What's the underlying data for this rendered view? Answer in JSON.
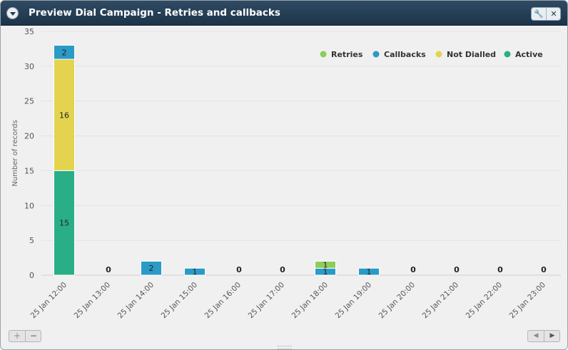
{
  "window": {
    "title": "Preview Dial Campaign - Retries and callbacks"
  },
  "colors": {
    "retries": "#8fcc5a",
    "callbacks": "#2a9ac6",
    "not_dialled": "#e4d34f",
    "active": "#2aae88"
  },
  "icons": {
    "collapse": "chevron-down-icon",
    "settings": "wrench-icon",
    "close": "close-icon",
    "zoom_in": "plus-icon",
    "zoom_out": "minus-icon",
    "scroll_left": "triangle-left-icon",
    "scroll_right": "triangle-right-icon"
  },
  "controls": {
    "settings_glyph": "🔧",
    "close_glyph": "✕",
    "zoom_in_glyph": "+",
    "zoom_out_glyph": "−",
    "left_glyph": "◀",
    "right_glyph": "▶"
  },
  "chart_data": {
    "type": "bar",
    "stacked": true,
    "ylabel": "Number of records",
    "xlabel": "",
    "ylim": [
      0,
      35
    ],
    "yticks": [
      0,
      5,
      10,
      15,
      20,
      25,
      30,
      35
    ],
    "grid": true,
    "legend_position": "top-right",
    "categories": [
      "25 Jan 12:00",
      "25 Jan 13:00",
      "25 Jan 14:00",
      "25 Jan 15:00",
      "25 Jan 16:00",
      "25 Jan 17:00",
      "25 Jan 18:00",
      "25 Jan 19:00",
      "25 Jan 20:00",
      "25 Jan 21:00",
      "25 Jan 22:00",
      "25 Jan 23:00"
    ],
    "series": [
      {
        "name": "Active",
        "key": "active",
        "values": [
          15,
          0,
          0,
          0,
          0,
          0,
          0,
          0,
          0,
          0,
          0,
          0
        ]
      },
      {
        "name": "Not Dialled",
        "key": "not_dialled",
        "values": [
          16,
          0,
          0,
          0,
          0,
          0,
          0,
          0,
          0,
          0,
          0,
          0
        ]
      },
      {
        "name": "Callbacks",
        "key": "callbacks",
        "values": [
          2,
          0,
          2,
          1,
          0,
          0,
          1,
          1,
          0,
          0,
          0,
          0
        ]
      },
      {
        "name": "Retries",
        "key": "retries",
        "values": [
          0,
          0,
          0,
          0,
          0,
          0,
          1,
          0,
          0,
          0,
          0,
          0
        ]
      }
    ],
    "legend_order": [
      "Retries",
      "Callbacks",
      "Not Dialled",
      "Active"
    ]
  }
}
